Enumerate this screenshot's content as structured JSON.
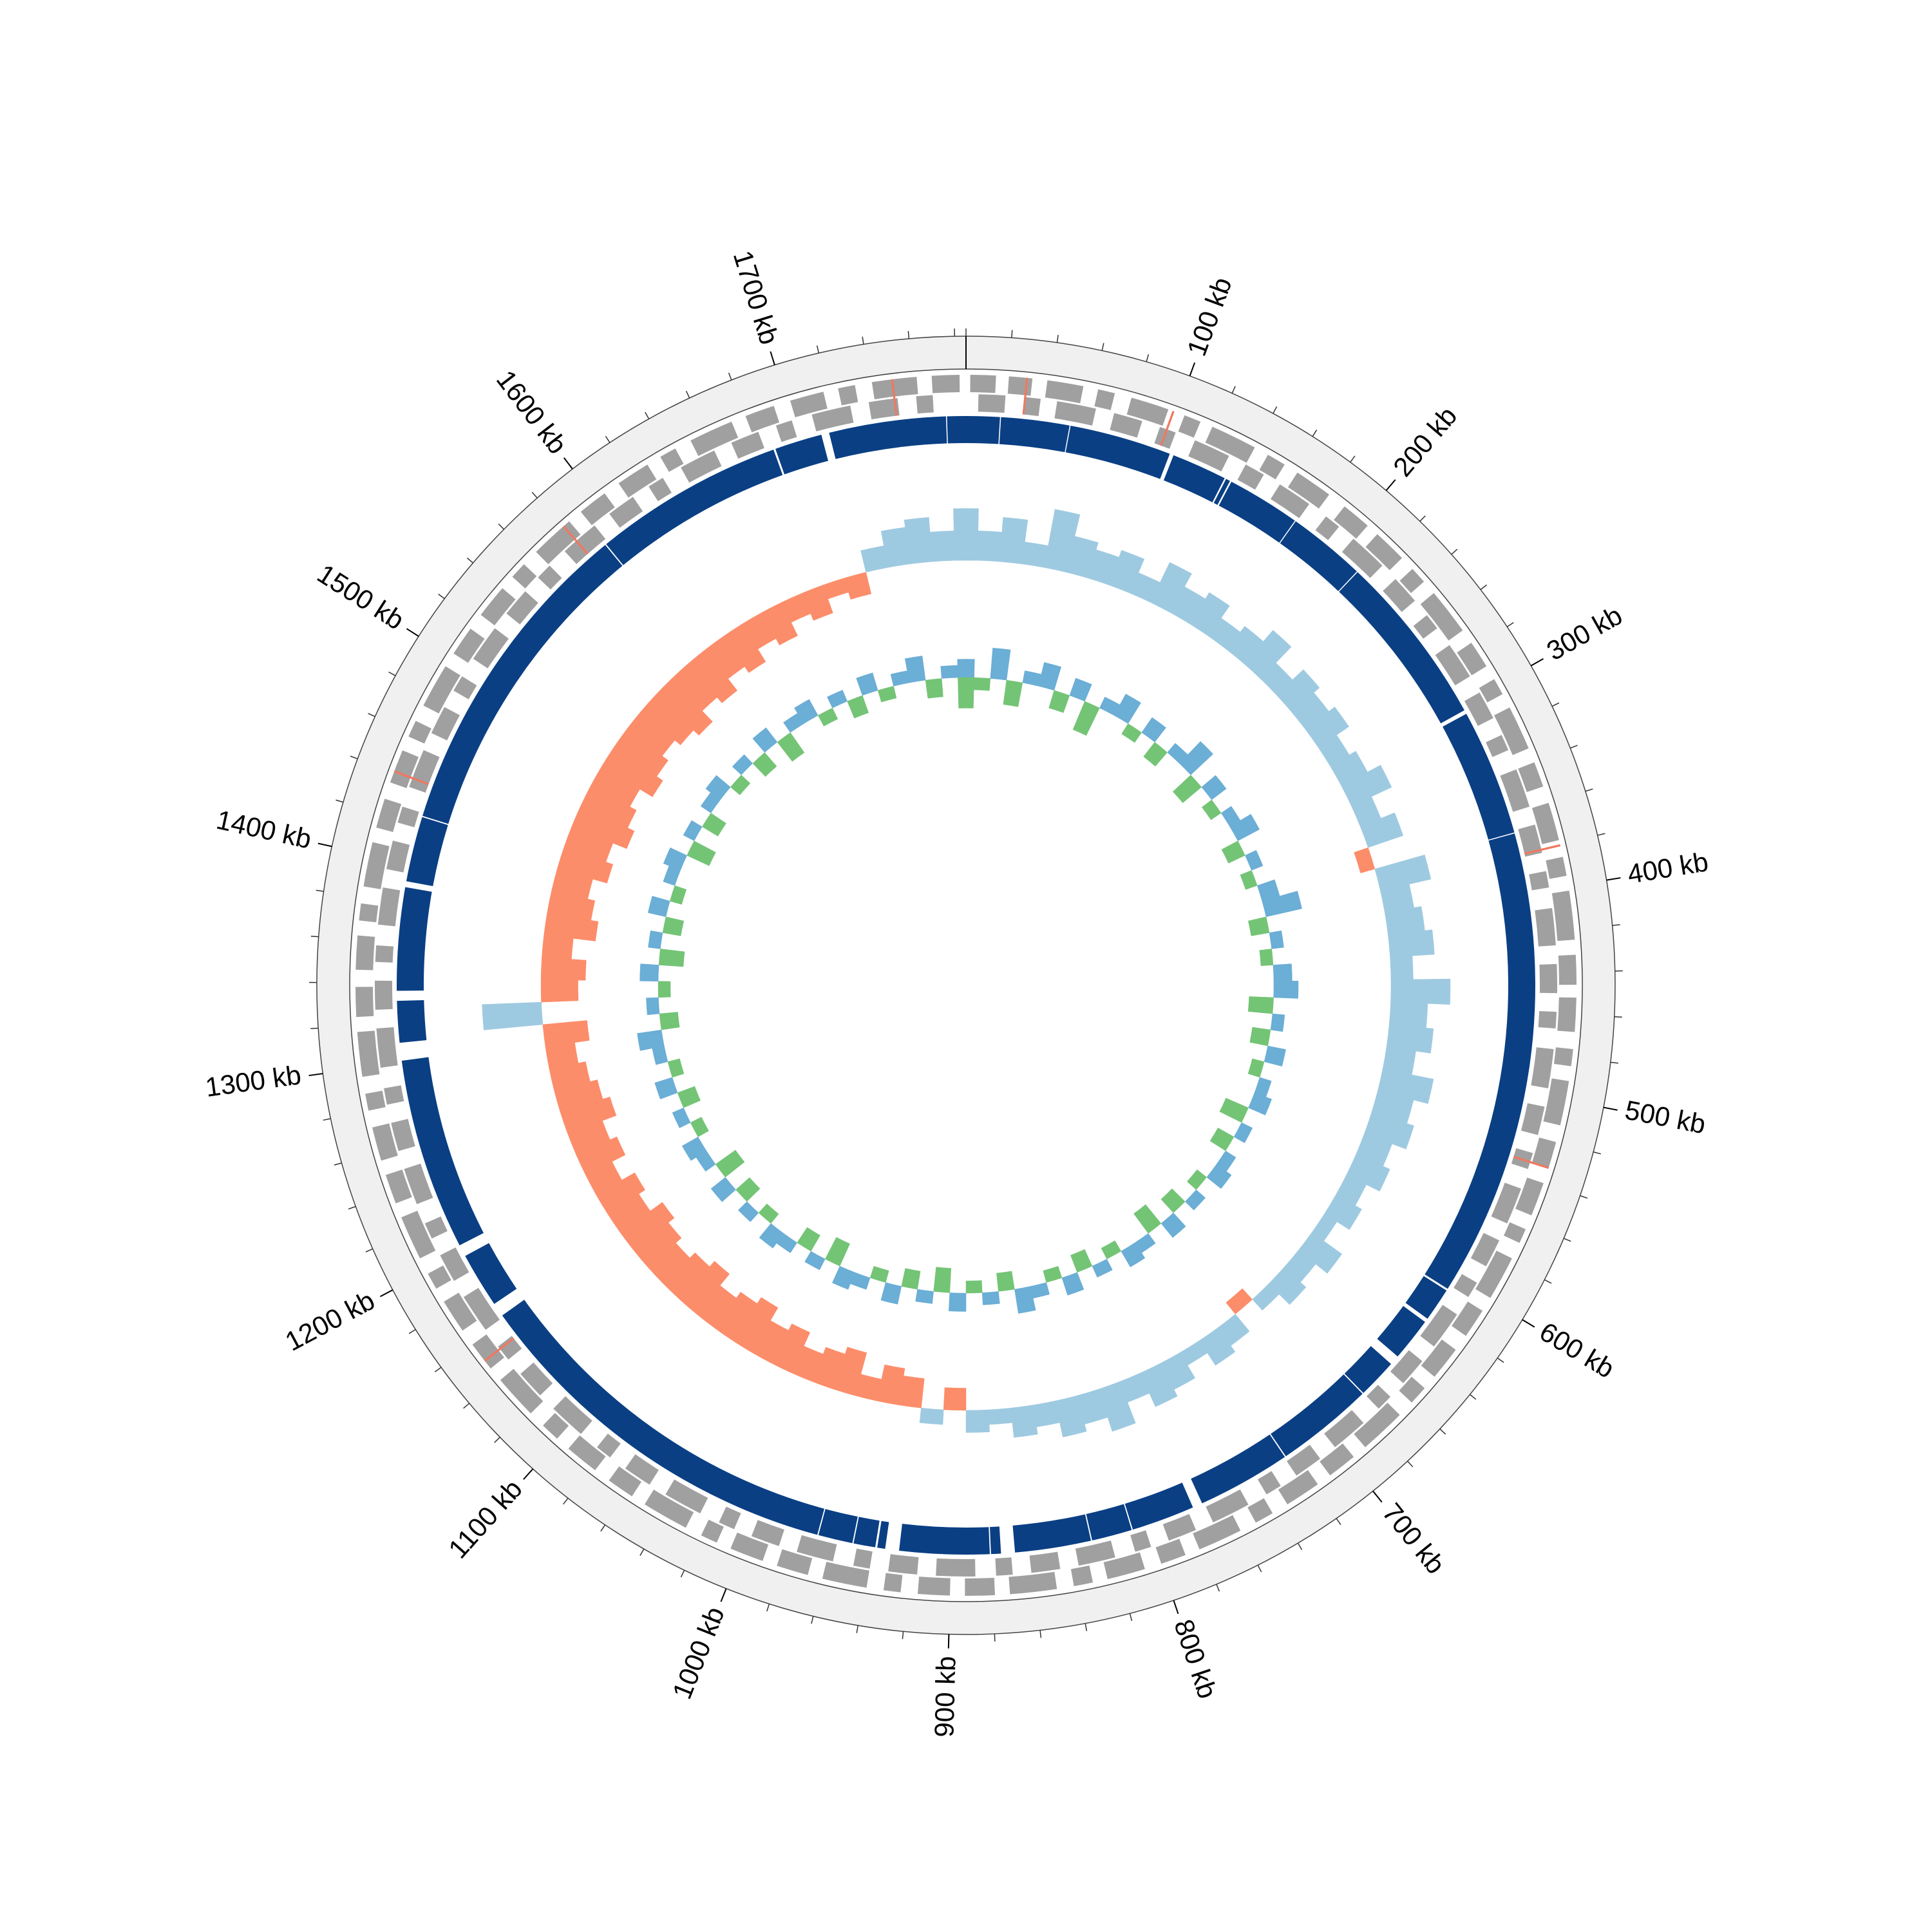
{
  "chart_data": {
    "type": "circular",
    "xlim": [
      0,
      1785
    ],
    "xticks": [
      {
        "value": 100,
        "label": "100 kb"
      },
      {
        "value": 200,
        "label": "200 kb"
      },
      {
        "value": 300,
        "label": "300 kb"
      },
      {
        "value": 400,
        "label": "400 kb"
      },
      {
        "value": 500,
        "label": "500 kb"
      },
      {
        "value": 600,
        "label": "600 kb"
      },
      {
        "value": 700,
        "label": "700 kb"
      },
      {
        "value": 800,
        "label": "800 kb"
      },
      {
        "value": 900,
        "label": "900 kb"
      },
      {
        "value": 1000,
        "label": "1000 kb"
      },
      {
        "value": 1100,
        "label": "1100 kb"
      },
      {
        "value": 1200,
        "label": "1200 kb"
      },
      {
        "value": 1300,
        "label": "1300 kb"
      },
      {
        "value": 1400,
        "label": "1400 kb"
      },
      {
        "value": 1500,
        "label": "1500 kb"
      },
      {
        "value": 1600,
        "label": "1600 kb"
      },
      {
        "value": 1700,
        "label": "1700 kb"
      }
    ],
    "minor_xticks": [
      0,
      20,
      40,
      60,
      80,
      100,
      120,
      140,
      160,
      180,
      200,
      220,
      240,
      260,
      280,
      300,
      320,
      340,
      360,
      380,
      400,
      420,
      440,
      460,
      480,
      500,
      520,
      540,
      560,
      580,
      600,
      620,
      640,
      660,
      680,
      700,
      720,
      740,
      760,
      780,
      800,
      820,
      840,
      860,
      880,
      900,
      920,
      940,
      960,
      980,
      1000,
      1020,
      1040,
      1060,
      1080,
      1100,
      1120,
      1140,
      1160,
      1180,
      1200,
      1220,
      1240,
      1260,
      1280,
      1300,
      1320,
      1340,
      1360,
      1380,
      1400,
      1420,
      1440,
      1460,
      1480,
      1500,
      1520,
      1540,
      1560,
      1580,
      1600,
      1620,
      1640,
      1660,
      1680,
      1700,
      1720,
      1740,
      1760,
      1780
    ],
    "contigs": {
      "color": "#0a3f84",
      "ranges": [
        [
          0,
          17
        ],
        [
          17.5,
          52
        ],
        [
          52.5,
          104
        ],
        [
          106,
          134
        ],
        [
          134.8,
          137
        ],
        [
          137.8,
          175
        ],
        [
          175.5,
          215
        ],
        [
          215.5,
          303
        ],
        [
          305,
          369
        ],
        [
          369.5,
          606
        ],
        [
          607,
          624
        ],
        [
          626,
          648
        ],
        [
          653,
          673
        ],
        [
          673.6,
          723
        ],
        [
          723.6,
          771
        ],
        [
          776,
          808
        ],
        [
          808.6,
          829
        ],
        [
          829.6,
          868
        ],
        [
          875,
          880
        ],
        [
          880.6,
          926
        ],
        [
          933,
          937
        ],
        [
          938,
          949
        ],
        [
          949.6,
          967
        ],
        [
          967.6,
          1163
        ],
        [
          1170,
          1198
        ],
        [
          1204,
          1301
        ],
        [
          1310,
          1331
        ],
        [
          1336,
          1388
        ],
        [
          1391,
          1424
        ],
        [
          1424.6,
          1590
        ],
        [
          1590.6,
          1687
        ],
        [
          1688,
          1712
        ],
        [
          1716,
          1775
        ],
        [
          1775.5,
          1785
        ]
      ]
    },
    "genes_forward": {
      "color": "#a0a0a0",
      "ranges": [
        [
          2,
          14
        ],
        [
          20,
          31
        ],
        [
          38,
          55
        ],
        [
          62,
          70
        ],
        [
          78,
          96
        ],
        [
          104,
          112
        ],
        [
          118,
          140
        ],
        [
          147,
          156
        ],
        [
          163,
          181
        ],
        [
          190,
          204
        ],
        [
          210,
          226
        ],
        [
          233,
          241
        ],
        [
          248,
          270
        ],
        [
          277,
          290
        ],
        [
          297,
          305
        ],
        [
          312,
          333
        ],
        [
          340,
          352
        ],
        [
          360,
          378
        ],
        [
          386,
          395
        ],
        [
          402,
          425
        ],
        [
          432,
          446
        ],
        [
          452,
          468
        ],
        [
          476,
          484
        ],
        [
          491,
          512
        ],
        [
          520,
          533
        ],
        [
          540,
          556
        ],
        [
          563,
          570
        ],
        [
          578,
          599
        ],
        [
          606,
          620
        ],
        [
          628,
          644
        ],
        [
          651,
          660
        ],
        [
          668,
          690
        ],
        [
          697,
          711
        ],
        [
          718,
          735
        ],
        [
          743,
          752
        ],
        [
          760,
          781
        ],
        [
          788,
          800
        ],
        [
          808,
          826
        ],
        [
          833,
          842
        ],
        [
          850,
          872
        ],
        [
          879,
          893
        ],
        [
          900,
          915
        ],
        [
          923,
          931
        ],
        [
          939,
          960
        ],
        [
          967,
          982
        ],
        [
          989,
          1005
        ],
        [
          1012,
          1020
        ],
        [
          1028,
          1050
        ],
        [
          1057,
          1070
        ],
        [
          1078,
          1094
        ],
        [
          1101,
          1110
        ],
        [
          1118,
          1139
        ],
        [
          1146,
          1160
        ],
        [
          1168,
          1184
        ],
        [
          1191,
          1199
        ],
        [
          1207,
          1228
        ],
        [
          1235,
          1249
        ],
        [
          1256,
          1272
        ],
        [
          1280,
          1288
        ],
        [
          1296,
          1317
        ],
        [
          1324,
          1338
        ],
        [
          1346,
          1362
        ],
        [
          1369,
          1377
        ],
        [
          1385,
          1406
        ],
        [
          1413,
          1427
        ],
        [
          1435,
          1451
        ],
        [
          1458,
          1466
        ],
        [
          1474,
          1495
        ],
        [
          1502,
          1516
        ],
        [
          1524,
          1540
        ],
        [
          1547,
          1555
        ],
        [
          1563,
          1584
        ],
        [
          1591,
          1605
        ],
        [
          1613,
          1629
        ],
        [
          1636,
          1644
        ],
        [
          1652,
          1673
        ],
        [
          1680,
          1694
        ],
        [
          1702,
          1718
        ],
        [
          1725,
          1733
        ],
        [
          1741,
          1762
        ],
        [
          1769,
          1782
        ]
      ]
    },
    "genes_reverse": {
      "color": "#a0a0a0",
      "ranges": [
        [
          6,
          19
        ],
        [
          28,
          36
        ],
        [
          44,
          63
        ],
        [
          72,
          86
        ],
        [
          95,
          103
        ],
        [
          113,
          131
        ],
        [
          140,
          150
        ],
        [
          159,
          176
        ],
        [
          186,
          194
        ],
        [
          203,
          222
        ],
        [
          231,
          245
        ],
        [
          254,
          262
        ],
        [
          272,
          290
        ],
        [
          299,
          313
        ],
        [
          322,
          330
        ],
        [
          340,
          359
        ],
        [
          368,
          382
        ],
        [
          391,
          399
        ],
        [
          409,
          427
        ],
        [
          436,
          450
        ],
        [
          459,
          467
        ],
        [
          477,
          496
        ],
        [
          505,
          519
        ],
        [
          528,
          536
        ],
        [
          546,
          564
        ],
        [
          573,
          587
        ],
        [
          596,
          604
        ],
        [
          614,
          633
        ],
        [
          642,
          656
        ],
        [
          665,
          673
        ],
        [
          683,
          701
        ],
        [
          710,
          724
        ],
        [
          733,
          741
        ],
        [
          751,
          770
        ],
        [
          779,
          793
        ],
        [
          802,
          810
        ],
        [
          820,
          838
        ],
        [
          847,
          861
        ],
        [
          870,
          878
        ],
        [
          888,
          907
        ],
        [
          916,
          930
        ],
        [
          939,
          947
        ],
        [
          957,
          975
        ],
        [
          984,
          998
        ],
        [
          1007,
          1015
        ],
        [
          1025,
          1044
        ],
        [
          1053,
          1067
        ],
        [
          1076,
          1084
        ],
        [
          1094,
          1112
        ],
        [
          1121,
          1135
        ],
        [
          1144,
          1152
        ],
        [
          1162,
          1181
        ],
        [
          1190,
          1204
        ],
        [
          1213,
          1221
        ],
        [
          1231,
          1249
        ],
        [
          1258,
          1272
        ],
        [
          1281,
          1289
        ],
        [
          1299,
          1318
        ],
        [
          1327,
          1341
        ],
        [
          1350,
          1358
        ],
        [
          1368,
          1386
        ],
        [
          1395,
          1409
        ],
        [
          1418,
          1426
        ],
        [
          1436,
          1455
        ],
        [
          1464,
          1478
        ],
        [
          1487,
          1495
        ],
        [
          1505,
          1523
        ],
        [
          1532,
          1546
        ],
        [
          1555,
          1563
        ],
        [
          1573,
          1592
        ],
        [
          1601,
          1615
        ],
        [
          1624,
          1632
        ],
        [
          1642,
          1660
        ],
        [
          1669,
          1683
        ],
        [
          1692,
          1700
        ],
        [
          1710,
          1729
        ],
        [
          1738,
          1752
        ],
        [
          1761,
          1769
        ]
      ]
    },
    "rna": {
      "color": "#f07860",
      "ranges": [
        [
          28,
          29
        ],
        [
          98,
          99
        ],
        [
          380,
          381
        ],
        [
          532,
          533
        ],
        [
          1150,
          1151
        ],
        [
          1440,
          1441
        ],
        [
          1580,
          1581
        ],
        [
          1750,
          1751
        ]
      ]
    },
    "x": [
      0,
      15,
      30,
      45,
      60,
      75,
      90,
      105,
      120,
      135,
      150,
      165,
      180,
      195,
      210,
      225,
      240,
      255,
      270,
      285,
      300,
      315,
      330,
      345,
      360,
      375,
      390,
      405,
      420,
      435,
      450,
      465,
      480,
      495,
      510,
      525,
      540,
      555,
      570,
      585,
      600,
      615,
      630,
      645,
      660,
      675,
      690,
      705,
      720,
      735,
      750,
      765,
      780,
      795,
      810,
      825,
      840,
      855,
      870,
      885,
      900,
      915,
      930,
      945,
      960,
      975,
      990,
      1005,
      1020,
      1035,
      1050,
      1065,
      1080,
      1095,
      1110,
      1125,
      1140,
      1155,
      1170,
      1185,
      1200,
      1215,
      1230,
      1245,
      1260,
      1275,
      1290,
      1305,
      1320,
      1335,
      1350,
      1365,
      1380,
      1395,
      1410,
      1425,
      1440,
      1455,
      1470,
      1485,
      1500,
      1515,
      1530,
      1545,
      1560,
      1575,
      1590,
      1605,
      1620,
      1635,
      1650,
      1665,
      1680,
      1695,
      1710,
      1725,
      1740,
      1755,
      1770,
      1785
    ],
    "gc_skew": {
      "ylim": [
        -0.1,
        0.1
      ],
      "positive_color": "#9ecae1",
      "negative_color": "#fc8d6a",
      "values": [
        0.07,
        0.04,
        0.06,
        0.03,
        0.08,
        0.05,
        0.04,
        0.05,
        0.03,
        0.06,
        0.04,
        0.05,
        0.03,
        0.04,
        0.06,
        0.03,
        0.05,
        0.04,
        0.05,
        0.03,
        0.04,
        0.06,
        0.03,
        0.05,
        -0.02,
        0.07,
        0.04,
        0.05,
        0.06,
        0.03,
        0.08,
        0.05,
        0.06,
        0.04,
        0.07,
        0.05,
        0.06,
        0.04,
        0.05,
        0.03,
        0.04,
        0.02,
        0.05,
        0.03,
        0.04,
        0.02,
        -0.02,
        0.03,
        0.04,
        0.02,
        0.04,
        0.05,
        0.03,
        0.06,
        0.04,
        0.05,
        0.03,
        0.04,
        0.02,
        0.03,
        -0.03,
        0.02,
        -0.04,
        -0.05,
        -0.03,
        -0.06,
        -0.05,
        -0.04,
        -0.06,
        -0.05,
        -0.07,
        -0.06,
        -0.05,
        -0.07,
        -0.06,
        -0.05,
        -0.06,
        -0.07,
        -0.05,
        -0.06,
        -0.04,
        -0.06,
        -0.05,
        -0.07,
        -0.06,
        -0.05,
        -0.04,
        -0.06,
        0.08,
        -0.05,
        -0.06,
        -0.04,
        -0.07,
        -0.06,
        -0.05,
        -0.07,
        -0.06,
        -0.08,
        -0.07,
        -0.06,
        -0.08,
        -0.07,
        -0.06,
        -0.07,
        -0.08,
        -0.06,
        -0.07,
        -0.05,
        -0.06,
        -0.04,
        -0.05,
        -0.03,
        -0.04,
        -0.02,
        -0.03,
        0.03,
        0.05,
        0.06,
        0.04,
        0.05
      ]
    },
    "gc_content": {
      "ylim": [
        -0.1,
        0.1
      ],
      "positive_color": "#6baed6",
      "negative_color": "#74c476",
      "values": [
        0.03,
        -0.02,
        0.05,
        -0.04,
        0.02,
        0.04,
        -0.03,
        0.03,
        -0.05,
        0.02,
        0.04,
        -0.02,
        0.03,
        -0.03,
        0.02,
        0.05,
        -0.04,
        0.03,
        -0.02,
        0.02,
        0.04,
        -0.03,
        0.02,
        -0.02,
        0.03,
        0.06,
        -0.03,
        0.02,
        -0.02,
        0.03,
        0.04,
        -0.04,
        0.02,
        -0.03,
        0.03,
        -0.02,
        0.02,
        0.03,
        -0.04,
        0.02,
        -0.03,
        0.02,
        0.03,
        -0.02,
        0.02,
        -0.03,
        0.03,
        -0.04,
        0.02,
        0.03,
        -0.02,
        0.02,
        -0.03,
        0.03,
        -0.02,
        0.02,
        0.04,
        -0.03,
        0.02,
        -0.02,
        0.03,
        -0.04,
        0.02,
        -0.03,
        0.03,
        -0.02,
        0.02,
        0.03,
        -0.04,
        0.02,
        -0.03,
        0.02,
        0.03,
        -0.02,
        0.02,
        -0.03,
        0.03,
        -0.04,
        0.02,
        0.03,
        -0.02,
        0.02,
        -0.03,
        0.03,
        -0.02,
        0.02,
        0.04,
        -0.03,
        0.02,
        -0.02,
        0.03,
        -0.04,
        0.02,
        -0.03,
        0.03,
        -0.02,
        0.02,
        0.03,
        -0.04,
        0.02,
        -0.03,
        0.02,
        0.03,
        -0.02,
        0.02,
        -0.03,
        0.03,
        -0.04,
        0.02,
        0.03,
        -0.02,
        0.02,
        -0.03,
        0.03,
        -0.02,
        0.02,
        0.04,
        -0.03,
        0.02,
        -0.05
      ]
    }
  }
}
